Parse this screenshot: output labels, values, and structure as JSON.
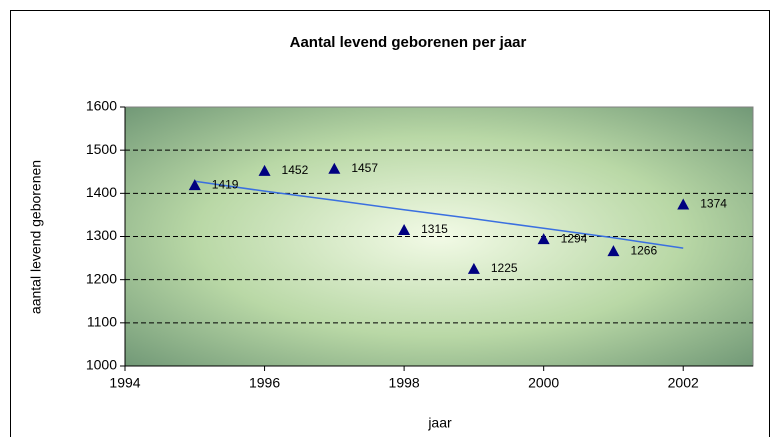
{
  "chart_data": {
    "type": "scatter",
    "title": "Aantal levend geborenen per jaar",
    "x_label": "jaar",
    "y_label": "aantal levend geborenen",
    "series": [
      {
        "color": "#000080",
        "x": [
          1995,
          1996,
          1997,
          1998,
          1999,
          2000,
          2001,
          2002
        ],
        "values": [
          1419,
          1452,
          1457,
          1315,
          1225,
          1294,
          1266,
          1374
        ]
      }
    ],
    "trendline": {
      "color": "#3a6fe0",
      "x": [
        1995,
        1996,
        1997,
        1998,
        1999,
        2000,
        2001,
        2002
      ],
      "values": [
        1428,
        1405,
        1384,
        1362,
        1341,
        1319,
        1297,
        1273
      ]
    },
    "xlim": [
      1994,
      2003
    ],
    "xticks": [
      1994,
      1996,
      1998,
      2000,
      2002
    ],
    "ylim": [
      1000,
      1600
    ],
    "yticks": [
      1000,
      1100,
      1200,
      1300,
      1400,
      1500,
      1600
    ],
    "grid": true
  }
}
